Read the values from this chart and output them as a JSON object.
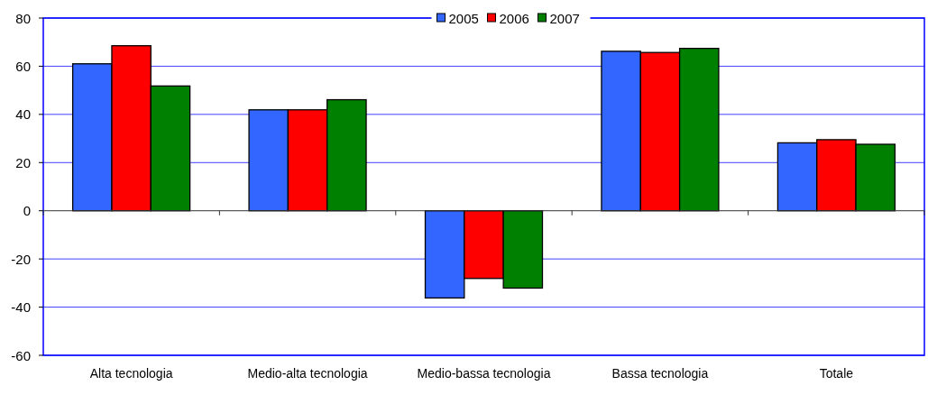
{
  "chart_data": {
    "type": "bar",
    "categories": [
      "Alta tecnologia",
      "Medio-alta tecnologia",
      "Medio-bassa tecnologia",
      "Bassa tecnologia",
      "Totale"
    ],
    "series": [
      {
        "name": "2005",
        "color": "#3366ff",
        "values": [
          61,
          41.9,
          -36.2,
          66.2,
          28.2
        ]
      },
      {
        "name": "2006",
        "color": "#ff0000",
        "values": [
          68.5,
          41.9,
          -28.1,
          65.7,
          29.5
        ]
      },
      {
        "name": "2007",
        "color": "#008000",
        "values": [
          51.8,
          46.1,
          -32.1,
          67.4,
          27.6
        ]
      }
    ],
    "ylim": [
      -60,
      80
    ],
    "yticks": [
      -60,
      -40,
      -20,
      0,
      20,
      40,
      60,
      80
    ],
    "grid": "y",
    "legend": "top"
  }
}
